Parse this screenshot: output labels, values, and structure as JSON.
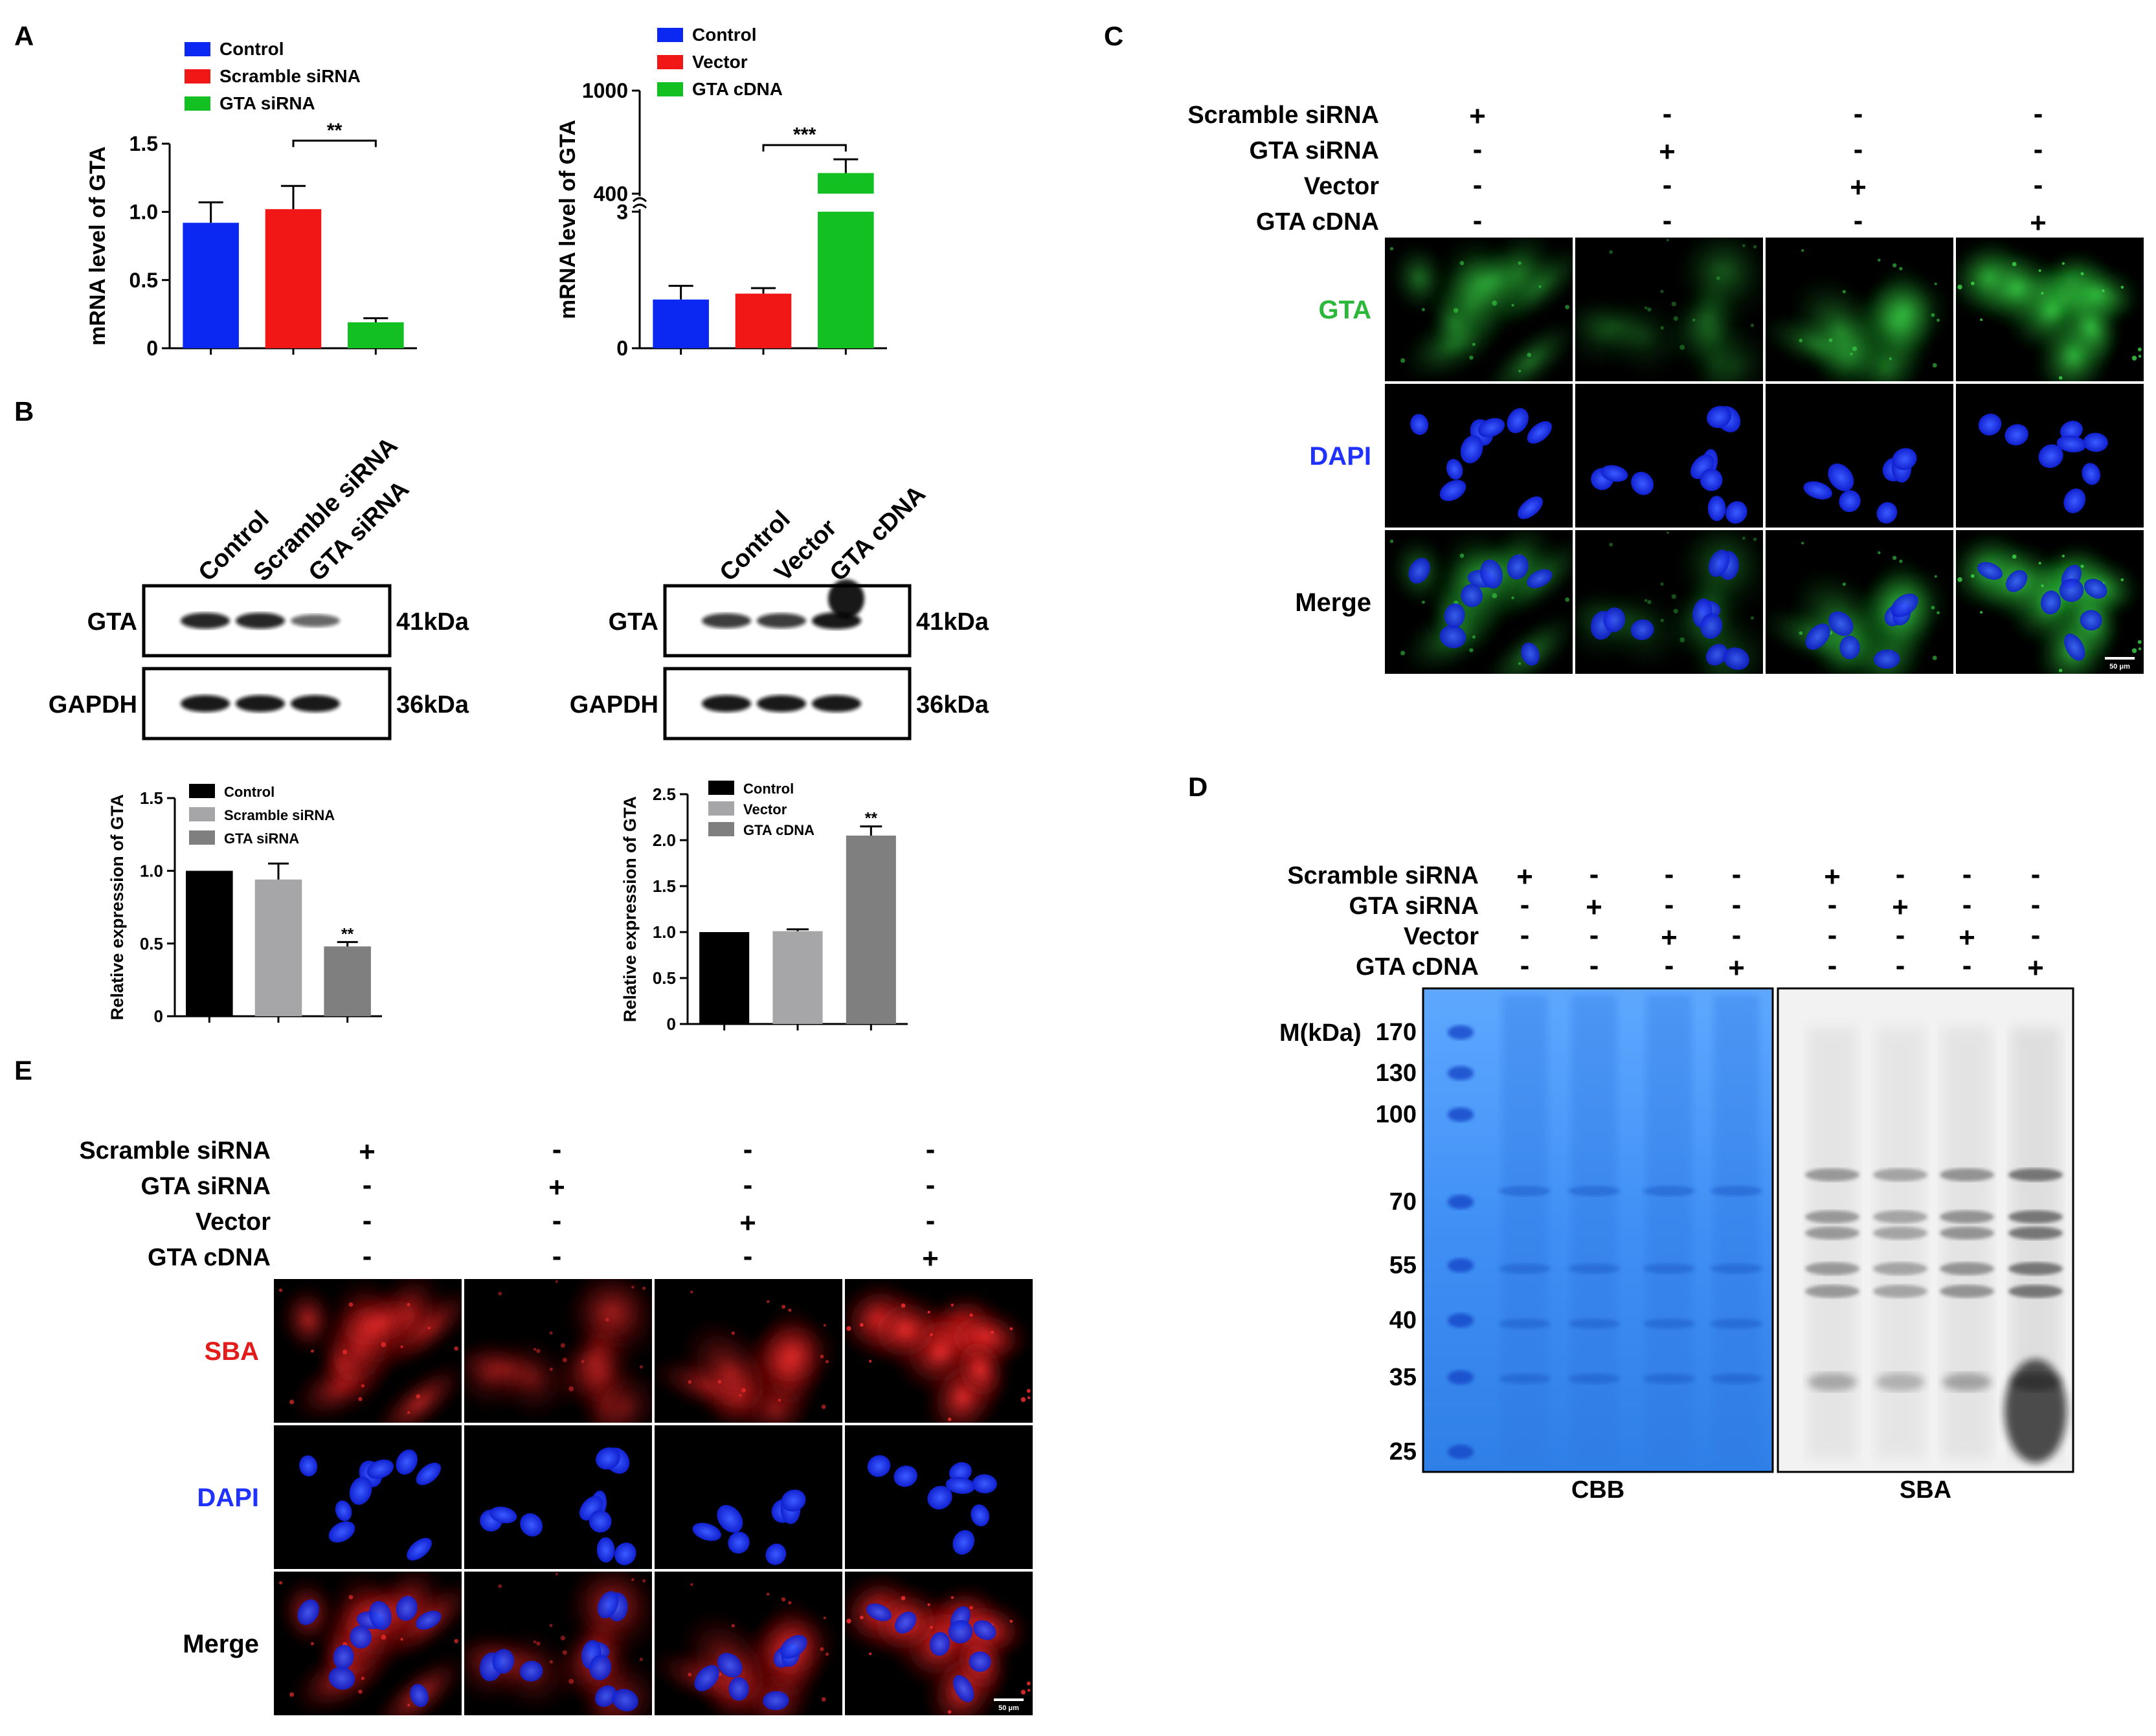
{
  "panel_labels": {
    "A": "A",
    "B": "B",
    "C": "C",
    "D": "D",
    "E": "E"
  },
  "colors": {
    "blue": "#0b28f2",
    "red": "#f21717",
    "green": "#12c021",
    "black": "#000000",
    "gray1": "#a6a6a9",
    "gray2": "#7f7f7f",
    "fluor_green": "#2bb83a",
    "fluor_blue": "#1f32ff",
    "fluor_red": "#e21b1b",
    "cbb_blue": "#3d8df2"
  },
  "panel_a": {
    "chart_data": [
      {
        "type": "bar",
        "categories": [
          "Control",
          "Scramble siRNA",
          "GTA siRNA"
        ],
        "values": [
          0.92,
          1.02,
          0.19
        ],
        "errors": [
          0.15,
          0.17,
          0.03
        ],
        "ylabel": "mRNA level of GTA",
        "yticks": [
          "0",
          "0.5",
          "1.0",
          "1.5"
        ],
        "ylim": [
          0,
          1.5
        ],
        "legend": [
          "Control",
          "Scramble siRNA",
          "GTA siRNA"
        ],
        "significance": "**"
      },
      {
        "type": "bar",
        "categories": [
          "Control",
          "Vector",
          "GTA cDNA"
        ],
        "values": [
          1.07,
          1.2,
          520
        ],
        "errors": [
          0.3,
          0.12,
          80
        ],
        "ylabel": "mRNA level of GTA",
        "yticks": [
          "0",
          "3",
          "400",
          "1000"
        ],
        "ylim": [
          0,
          1000
        ],
        "axis_break": [
          3,
          400
        ],
        "legend": [
          "Control",
          "Vector",
          "GTA cDNA"
        ],
        "significance": "***"
      }
    ]
  },
  "panel_b": {
    "blot_left": {
      "lanes": [
        "Control",
        "Scramble siRNA",
        "GTA siRNA"
      ],
      "rows": [
        {
          "label": "GTA",
          "size": "41kDa"
        },
        {
          "label": "GAPDH",
          "size": "36kDa"
        }
      ]
    },
    "blot_right": {
      "lanes": [
        "Control",
        "Vector",
        "GTA cDNA"
      ],
      "rows": [
        {
          "label": "GTA",
          "size": "41kDa"
        },
        {
          "label": "GAPDH",
          "size": "36kDa"
        }
      ]
    },
    "chart_data": [
      {
        "type": "bar",
        "categories": [
          "Control",
          "Scramble siRNA",
          "GTA siRNA"
        ],
        "values": [
          1.0,
          0.94,
          0.48
        ],
        "errors": [
          0,
          0.11,
          0.03
        ],
        "ylabel": "Relative expression of GTA",
        "yticks": [
          "0",
          "0.5",
          "1.0",
          "1.5"
        ],
        "ylim": [
          0,
          1.5
        ],
        "legend": [
          "Control",
          "Scramble siRNA",
          "GTA siRNA"
        ],
        "significance": "**"
      },
      {
        "type": "bar",
        "categories": [
          "Control",
          "Vector",
          "GTA cDNA"
        ],
        "values": [
          1.0,
          1.01,
          2.05
        ],
        "errors": [
          0,
          0.02,
          0.1
        ],
        "ylabel": "Relative expression of GTA",
        "yticks": [
          "0",
          "0.5",
          "1.0",
          "1.5",
          "2.0",
          "2.5"
        ],
        "ylim": [
          0,
          2.5
        ],
        "legend": [
          "Control",
          "Vector",
          "GTA cDNA"
        ],
        "significance": "**"
      }
    ]
  },
  "panel_c": {
    "conditions": [
      {
        "label": "Scramble siRNA",
        "signs": [
          "+",
          "-",
          "-",
          "-"
        ]
      },
      {
        "label": "GTA siRNA",
        "signs": [
          "-",
          "+",
          "-",
          "-"
        ]
      },
      {
        "label": "Vector",
        "signs": [
          "-",
          "-",
          "+",
          "-"
        ]
      },
      {
        "label": "GTA cDNA",
        "signs": [
          "-",
          "-",
          "-",
          "+"
        ]
      }
    ],
    "row_labels": [
      "GTA",
      "DAPI",
      "Merge"
    ],
    "scale_bar": "50 μm"
  },
  "panel_d": {
    "conditions": [
      {
        "label": "Scramble siRNA",
        "signs": [
          "+",
          "-",
          "-",
          "-",
          "+",
          "-",
          "-",
          "-"
        ]
      },
      {
        "label": "GTA siRNA",
        "signs": [
          "-",
          "+",
          "-",
          "-",
          "-",
          "+",
          "-",
          "-"
        ]
      },
      {
        "label": "Vector",
        "signs": [
          "-",
          "-",
          "+",
          "-",
          "-",
          "-",
          "+",
          "-"
        ]
      },
      {
        "label": "GTA cDNA",
        "signs": [
          "-",
          "-",
          "-",
          "+",
          "-",
          "-",
          "-",
          "+"
        ]
      }
    ],
    "marker_title": "M(kDa)",
    "markers": [
      "170",
      "130",
      "100",
      "70",
      "55",
      "40",
      "35",
      "25"
    ],
    "gel_labels": [
      "CBB",
      "SBA"
    ]
  },
  "panel_e": {
    "conditions": [
      {
        "label": "Scramble siRNA",
        "signs": [
          "+",
          "-",
          "-",
          "-"
        ]
      },
      {
        "label": "GTA siRNA",
        "signs": [
          "-",
          "+",
          "-",
          "-"
        ]
      },
      {
        "label": "Vector",
        "signs": [
          "-",
          "-",
          "+",
          "-"
        ]
      },
      {
        "label": "GTA cDNA",
        "signs": [
          "-",
          "-",
          "-",
          "+"
        ]
      }
    ],
    "row_labels": [
      "SBA",
      "DAPI",
      "Merge"
    ],
    "scale_bar": "50 μm"
  }
}
